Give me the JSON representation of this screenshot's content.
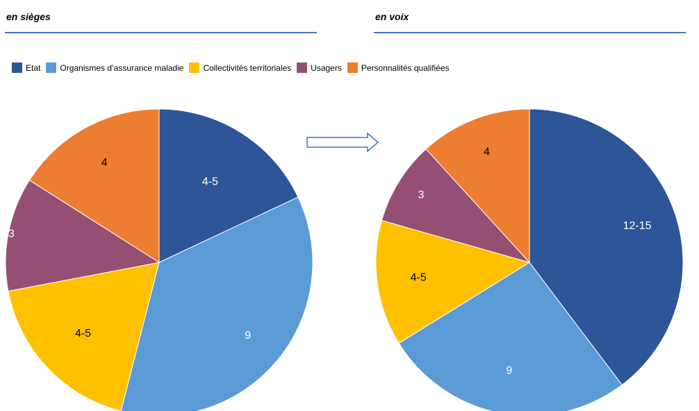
{
  "chart_data": [
    {
      "type": "pie",
      "title": "en sièges",
      "categories": [
        "Etat",
        "Organismes d’assurance maladie",
        "Collectivités territoriales",
        "Usagers",
        "Personnalités qualifiées"
      ],
      "values": [
        4.5,
        9,
        4.5,
        3,
        4
      ],
      "labels": [
        "4-5",
        "9",
        "4-5",
        "3",
        "4"
      ],
      "colors": [
        "#2e5597",
        "#5b9bd5",
        "#ffc000",
        "#954f72",
        "#ed7d31"
      ],
      "label_colors": [
        "#ffffff",
        "#ffffff",
        "#000000",
        "#ffffff",
        "#000000"
      ]
    },
    {
      "type": "pie",
      "title": "en voix",
      "categories": [
        "Etat",
        "Organismes d’assurance maladie",
        "Collectivités territoriales",
        "Usagers",
        "Personnalités qualifiées"
      ],
      "values": [
        13.5,
        9,
        4.5,
        3,
        4
      ],
      "labels": [
        "12-15",
        "9",
        "4-5",
        "3",
        "4"
      ],
      "colors": [
        "#2e5597",
        "#5b9bd5",
        "#ffc000",
        "#954f72",
        "#ed7d31"
      ],
      "label_colors": [
        "#ffffff",
        "#ffffff",
        "#000000",
        "#ffffff",
        "#000000"
      ]
    }
  ],
  "legend": {
    "items": [
      {
        "label": "Etat",
        "color": "#2e5597"
      },
      {
        "label": "Organismes d’assurance maladie",
        "color": "#5b9bd5"
      },
      {
        "label": "Collectivités territoriales",
        "color": "#ffc000"
      },
      {
        "label": "Usagers",
        "color": "#954f72"
      },
      {
        "label": "Personnalités qualifiées",
        "color": "#ed7d31"
      }
    ]
  },
  "arrow": {
    "icon": "right-arrow-icon"
  },
  "rule_color": "#4472c4"
}
